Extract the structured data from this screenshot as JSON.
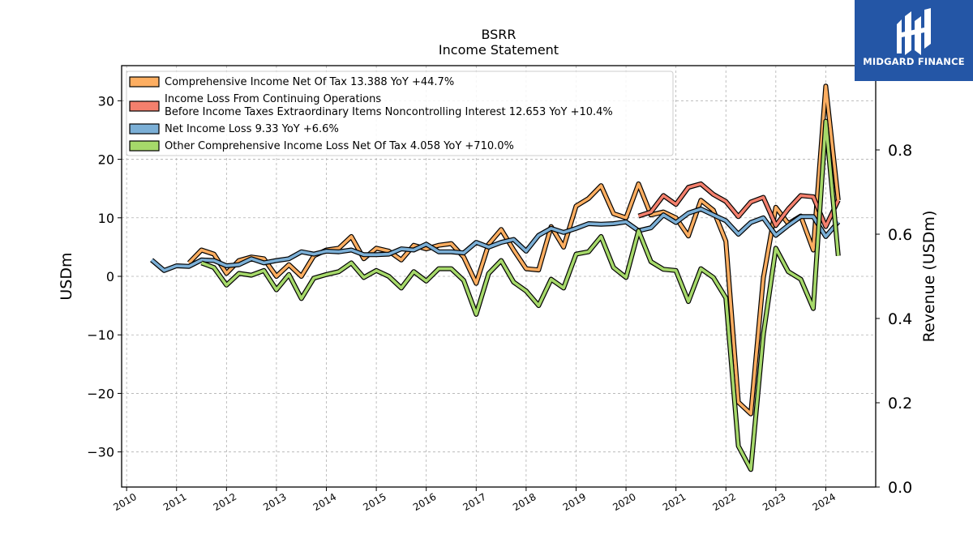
{
  "chart_data": {
    "type": "line",
    "title": "BSRR",
    "subtitle": "Income Statement",
    "ylabel": "USDm",
    "ylabel_right": "Revenue (USDm)",
    "ylim": [
      -36,
      36
    ],
    "ylim_right": [
      0.0,
      1.0
    ],
    "yticks": [
      -30,
      -20,
      -10,
      0,
      10,
      20,
      30
    ],
    "yticks_right": [
      "0.0",
      "0.2",
      "0.4",
      "0.6",
      "0.8"
    ],
    "xlim": [
      2009.9,
      2025.0
    ],
    "xticks": [
      "2010",
      "2011",
      "2012",
      "2013",
      "2014",
      "2015",
      "2016",
      "2017",
      "2018",
      "2019",
      "2020",
      "2021",
      "2022",
      "2023",
      "2024"
    ],
    "grid": true,
    "legend_position": "top-left",
    "series": [
      {
        "name": "Comprehensive Income Net Of Tax",
        "legend_label": "Comprehensive Income Net Of Tax  13.388 YoY +44.7%",
        "color": "#fdae61",
        "x": [
          2011.25,
          2011.5,
          2011.75,
          2012.0,
          2012.25,
          2012.5,
          2012.75,
          2013.0,
          2013.25,
          2013.5,
          2013.75,
          2014.0,
          2014.25,
          2014.5,
          2014.75,
          2015.0,
          2015.25,
          2015.5,
          2015.75,
          2016.0,
          2016.25,
          2016.5,
          2016.75,
          2017.0,
          2017.25,
          2017.5,
          2017.75,
          2018.0,
          2018.25,
          2018.5,
          2018.75,
          2019.0,
          2019.25,
          2019.5,
          2019.75,
          2020.0,
          2020.25,
          2020.5,
          2020.75,
          2021.0,
          2021.25,
          2021.5,
          2021.75,
          2022.0,
          2022.25,
          2022.5,
          2022.75,
          2023.0,
          2023.25,
          2023.5,
          2023.75,
          2024.0,
          2024.25
        ],
        "y": [
          2.3,
          4.5,
          3.8,
          0.5,
          2.7,
          3.3,
          3.0,
          0.0,
          2.0,
          0.0,
          3.5,
          4.5,
          4.8,
          6.8,
          3.0,
          4.8,
          4.3,
          2.8,
          5.3,
          4.7,
          5.3,
          5.6,
          3.3,
          -1.2,
          5.5,
          8.0,
          4.5,
          1.3,
          1.1,
          8.5,
          5.0,
          12.0,
          13.3,
          15.5,
          10.7,
          10.0,
          15.8,
          10.5,
          11.0,
          10.0,
          6.9,
          13.0,
          11.3,
          6.0,
          -21.5,
          -23.5,
          -0.3,
          11.8,
          9.0,
          10.3,
          4.5,
          32.5,
          13.0
        ]
      },
      {
        "name": "Income Loss From Continuing Operations Before Income Taxes Extraordinary Items Noncontrolling Interest",
        "legend_label_line1": "Income Loss From Continuing Operations",
        "legend_label_line2": "Before Income Taxes Extraordinary Items Noncontrolling Interest  12.653 YoY +10.4%",
        "color": "#f4806d",
        "x": [
          2020.25,
          2020.5,
          2020.75,
          2021.0,
          2021.25,
          2021.5,
          2021.75,
          2022.0,
          2022.25,
          2022.5,
          2022.75,
          2023.0,
          2023.25,
          2023.5,
          2023.75,
          2024.0,
          2024.25
        ],
        "y": [
          10.3,
          11.0,
          13.8,
          12.3,
          15.2,
          15.8,
          14.0,
          12.8,
          10.2,
          12.7,
          13.5,
          8.7,
          11.5,
          13.8,
          13.6,
          8.5,
          13.0
        ]
      },
      {
        "name": "Net Income Loss",
        "legend_label": "Net Income Loss  9.33 YoY +6.6%",
        "color": "#7bafd6",
        "x": [
          2010.5,
          2010.75,
          2011.0,
          2011.25,
          2011.5,
          2011.75,
          2012.0,
          2012.25,
          2012.5,
          2012.75,
          2013.0,
          2013.25,
          2013.5,
          2013.75,
          2014.0,
          2014.25,
          2014.5,
          2014.75,
          2015.0,
          2015.25,
          2015.5,
          2015.75,
          2016.0,
          2016.25,
          2016.5,
          2016.75,
          2017.0,
          2017.25,
          2017.5,
          2017.75,
          2018.0,
          2018.25,
          2018.5,
          2018.75,
          2019.0,
          2019.25,
          2019.5,
          2019.75,
          2020.0,
          2020.25,
          2020.5,
          2020.75,
          2021.0,
          2021.25,
          2021.5,
          2021.75,
          2022.0,
          2022.25,
          2022.5,
          2022.75,
          2023.0,
          2023.25,
          2023.5,
          2023.75,
          2024.0,
          2024.25
        ],
        "y": [
          2.8,
          1.0,
          1.8,
          1.7,
          2.8,
          2.7,
          1.8,
          2.0,
          3.0,
          2.3,
          2.7,
          3.0,
          4.2,
          3.8,
          4.3,
          4.2,
          4.5,
          3.7,
          3.7,
          3.8,
          4.7,
          4.5,
          5.5,
          4.2,
          4.2,
          4.0,
          5.8,
          5.0,
          5.8,
          6.3,
          4.3,
          7.0,
          8.2,
          7.5,
          8.2,
          9.0,
          8.9,
          9.0,
          9.3,
          7.8,
          8.3,
          10.5,
          9.2,
          10.8,
          11.5,
          10.5,
          9.5,
          7.2,
          9.2,
          10.0,
          7.0,
          8.7,
          10.2,
          10.2,
          6.8,
          9.3
        ]
      },
      {
        "name": "Other Comprehensive Income Loss Net Of Tax",
        "legend_label": "Other Comprehensive Income Loss Net Of Tax  4.058 YoY +710.0%",
        "color": "#a6d96a",
        "x": [
          2011.5,
          2011.75,
          2012.0,
          2012.25,
          2012.5,
          2012.75,
          2013.0,
          2013.25,
          2013.5,
          2013.75,
          2014.0,
          2014.25,
          2014.5,
          2014.75,
          2015.0,
          2015.25,
          2015.5,
          2015.75,
          2016.0,
          2016.25,
          2016.5,
          2016.75,
          2017.0,
          2017.25,
          2017.5,
          2017.75,
          2018.0,
          2018.25,
          2018.5,
          2018.75,
          2019.0,
          2019.25,
          2019.5,
          2019.75,
          2020.0,
          2020.25,
          2020.5,
          2020.75,
          2021.0,
          2021.25,
          2021.5,
          2021.75,
          2022.0,
          2022.25,
          2022.5,
          2022.75,
          2023.0,
          2023.25,
          2023.5,
          2023.75,
          2024.0,
          2024.25
        ],
        "y": [
          2.3,
          1.5,
          -1.5,
          0.5,
          0.2,
          1.0,
          -2.3,
          0.3,
          -3.8,
          -0.3,
          0.3,
          0.8,
          2.3,
          -0.2,
          1.0,
          0.0,
          -2.0,
          0.8,
          -0.8,
          1.3,
          1.3,
          -0.7,
          -6.5,
          0.5,
          2.7,
          -1.0,
          -2.5,
          -5.0,
          -0.5,
          -2.0,
          3.8,
          4.2,
          6.8,
          1.5,
          -0.2,
          7.8,
          2.5,
          1.2,
          1.0,
          -4.3,
          1.3,
          -0.2,
          -3.7,
          -29.0,
          -33.0,
          -10.0,
          4.8,
          0.8,
          -0.5,
          -5.5,
          26.5,
          3.5
        ]
      }
    ]
  },
  "logo": {
    "text": "MIDGARD FINANCE",
    "color": "#2456a6"
  }
}
